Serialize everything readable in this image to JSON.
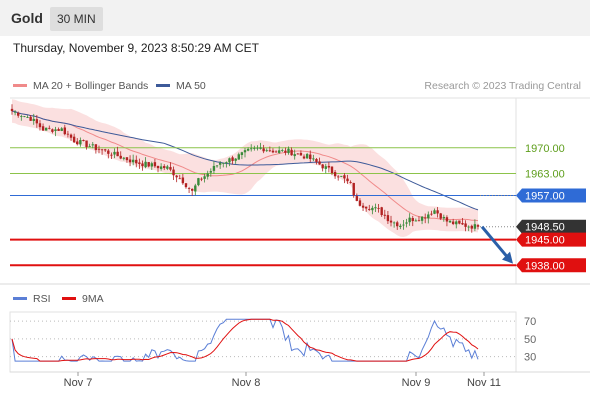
{
  "header": {
    "symbol": "Gold",
    "timeframe": "30 MIN"
  },
  "datetime": "Thursday, November 9, 2023 8:50:29 AM CET",
  "legend": [
    {
      "label": "MA 20 + Bollinger Bands",
      "color": "#f08a8a"
    },
    {
      "label": "MA 50",
      "color": "#3d5a99"
    }
  ],
  "credit": "Research © 2023 Trading Central",
  "rsi_legend": [
    {
      "label": "RSI",
      "color": "#5b7fd6"
    },
    {
      "label": "9MA",
      "color": "#e01010"
    }
  ],
  "colors": {
    "up": "#3a8a3a",
    "down": "#b22222",
    "band": "#fadadb",
    "ma20": "#f08a8a",
    "ma50": "#3d5a99",
    "resistance": "#8cc34a",
    "pivot": "#2f6bd6",
    "support": "#e01010",
    "last": "#333333",
    "arrow": "#2a5fa8"
  },
  "chart_data": {
    "type": "candlestick",
    "price_ylim": [
      1934,
      1983
    ],
    "levels": [
      {
        "value": 1970.0,
        "label": "1970.00",
        "kind": "resistance"
      },
      {
        "value": 1963.0,
        "label": "1963.00",
        "kind": "resistance"
      },
      {
        "value": 1957.0,
        "label": "1957.00",
        "kind": "pivot"
      },
      {
        "value": 1948.5,
        "label": "1948.50",
        "kind": "last"
      },
      {
        "value": 1945.0,
        "label": "1945.00",
        "kind": "support"
      },
      {
        "value": 1938.0,
        "label": "1938.00",
        "kind": "support"
      }
    ],
    "arrow": {
      "from": 1948.5,
      "to": 1939
    },
    "x_ticks": [
      "Nov 7",
      "Nov 8",
      "Nov 9",
      "Nov 11"
    ],
    "close_anchors": [
      [
        0,
        1980
      ],
      [
        6,
        1978
      ],
      [
        10,
        1975
      ],
      [
        16,
        1975
      ],
      [
        20,
        1972
      ],
      [
        30,
        1969
      ],
      [
        40,
        1966
      ],
      [
        46,
        1965
      ],
      [
        50,
        1964.5
      ],
      [
        55,
        1961
      ],
      [
        58,
        1958
      ],
      [
        60,
        1961
      ],
      [
        63,
        1963
      ],
      [
        67,
        1966
      ],
      [
        71,
        1967
      ],
      [
        76,
        1969
      ],
      [
        80,
        1970
      ],
      [
        85,
        1969
      ],
      [
        89,
        1969
      ],
      [
        95,
        1967.5
      ],
      [
        98,
        1966
      ],
      [
        102,
        1964
      ],
      [
        106,
        1962
      ],
      [
        109,
        1960
      ],
      [
        111,
        1955
      ],
      [
        118,
        1953
      ],
      [
        122,
        1950
      ],
      [
        125,
        1949
      ],
      [
        128,
        1950.5
      ],
      [
        132,
        1951
      ],
      [
        136,
        1953
      ],
      [
        140,
        1950
      ],
      [
        144,
        1949
      ],
      [
        150,
        1948.5
      ]
    ],
    "candle_count": 151,
    "rsi": {
      "ylim": [
        15,
        78
      ],
      "ticks": [
        70,
        50,
        30
      ]
    }
  }
}
